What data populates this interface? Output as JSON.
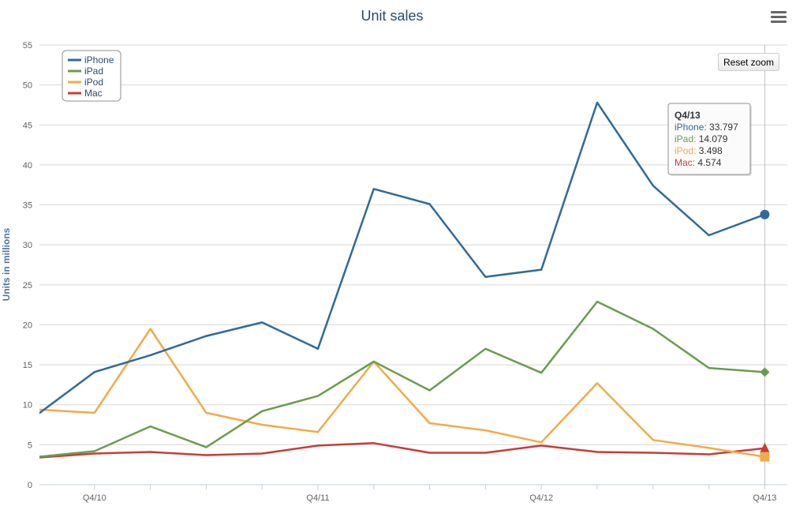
{
  "chart_data": {
    "type": "line",
    "title": "Unit sales",
    "xlabel": "",
    "ylabel": "Units in millions",
    "ylim": [
      0,
      55
    ],
    "yticks": [
      0,
      5,
      10,
      15,
      20,
      25,
      30,
      35,
      40,
      45,
      50,
      55
    ],
    "x_tick_labels": [
      "Q4/10",
      "Q4/11",
      "Q4/12",
      "Q4/13"
    ],
    "legend_position": "top-left",
    "grid": true,
    "series": [
      {
        "name": "iPhone",
        "color": "#2f6a99",
        "marker": "circle",
        "values": [
          8.9,
          14.1,
          16.2,
          18.6,
          20.3,
          17.0,
          37.0,
          35.1,
          26.0,
          26.9,
          47.8,
          37.4,
          31.2,
          33.797
        ]
      },
      {
        "name": "iPad",
        "color": "#6a9c4f",
        "marker": "diamond",
        "values": [
          3.5,
          4.2,
          7.3,
          4.7,
          9.2,
          11.1,
          15.4,
          11.8,
          17.0,
          14.0,
          22.9,
          19.5,
          14.6,
          14.079
        ]
      },
      {
        "name": "iPod",
        "color": "#f0ab4a",
        "marker": "square",
        "values": [
          9.4,
          9.0,
          19.5,
          9.0,
          7.5,
          6.6,
          15.4,
          7.7,
          6.8,
          5.3,
          12.7,
          5.6,
          4.6,
          3.498
        ]
      },
      {
        "name": "Mac",
        "color": "#c83c3a",
        "marker": "triangle",
        "values": [
          3.4,
          3.9,
          4.1,
          3.7,
          3.9,
          4.9,
          5.2,
          4.0,
          4.0,
          4.9,
          4.1,
          4.0,
          3.8,
          4.574
        ]
      }
    ],
    "tooltip": {
      "header": "Q4/13",
      "rows": [
        {
          "name": "iPhone",
          "value": "33.797"
        },
        {
          "name": "iPad",
          "value": "14.079"
        },
        {
          "name": "iPod",
          "value": "3.498"
        },
        {
          "name": "Mac",
          "value": "4.574"
        }
      ]
    }
  },
  "ui": {
    "reset_zoom_label": "Reset zoom",
    "menu_icon": "hamburger-menu-icon"
  }
}
